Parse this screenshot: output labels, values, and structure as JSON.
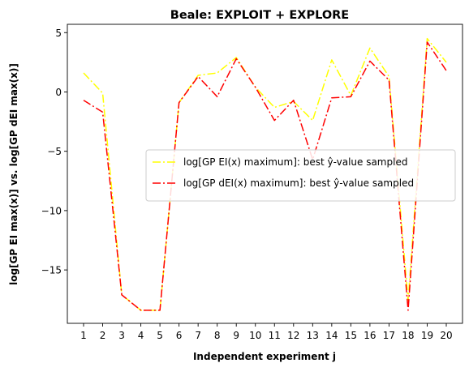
{
  "chart_data": {
    "type": "line",
    "title": "Beale: EXPLOIT + EXPLORE",
    "xlabel": "Independent experiment j",
    "ylabel": "log[GP EI max(x)] vs. log[GP dEI max(x)]",
    "x": [
      1,
      2,
      3,
      4,
      5,
      6,
      7,
      8,
      9,
      10,
      11,
      12,
      13,
      14,
      15,
      16,
      17,
      18,
      19,
      20
    ],
    "xlim": [
      0.15,
      20.85
    ],
    "ylim": [
      -19.5,
      5.7
    ],
    "yticks": [
      5,
      0,
      -5,
      -10,
      -15
    ],
    "ytick_labels": [
      "5",
      "0",
      "−5",
      "−10",
      "−15"
    ],
    "legend_position": "center-right",
    "series": [
      {
        "name": "log[GP EI(x) maximum]: best ŷ-value sampled",
        "color": "#ffff00",
        "line_style": "dashdot",
        "values": [
          1.6,
          -0.1,
          -17.1,
          -18.4,
          -18.4,
          -0.9,
          1.4,
          1.6,
          2.9,
          0.4,
          -1.3,
          -0.8,
          -2.4,
          2.7,
          -0.3,
          3.7,
          1.3,
          -17.6,
          4.5,
          2.5
        ]
      },
      {
        "name": "log[GP dEI(x) maximum]: best ŷ-value sampled",
        "color": "#ff0000",
        "line_style": "dashdot",
        "values": [
          -0.7,
          -1.7,
          -17.1,
          -18.4,
          -18.4,
          -0.9,
          1.3,
          -0.4,
          2.8,
          0.4,
          -2.4,
          -0.7,
          -5.7,
          -0.5,
          -0.4,
          2.6,
          1.0,
          -18.4,
          4.2,
          1.8
        ]
      }
    ]
  }
}
